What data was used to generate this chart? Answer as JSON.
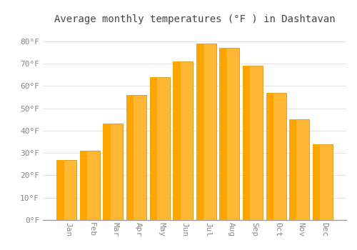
{
  "title": "Average monthly temperatures (°F ) in Dashtavan",
  "months": [
    "Jan",
    "Feb",
    "Mar",
    "Apr",
    "May",
    "Jun",
    "Jul",
    "Aug",
    "Sep",
    "Oct",
    "Nov",
    "Dec"
  ],
  "values": [
    27,
    31,
    43,
    56,
    64,
    71,
    79,
    77,
    69,
    57,
    45,
    34
  ],
  "bar_color": "#FFA500",
  "bar_color_light": "#FFB733",
  "bar_edge_color": "#CC8800",
  "background_color": "#FFFFFF",
  "grid_color": "#DDDDDD",
  "text_color": "#888888",
  "title_color": "#444444",
  "ylim": [
    0,
    85
  ],
  "ytick_values": [
    0,
    10,
    20,
    30,
    40,
    50,
    60,
    70,
    80
  ],
  "title_fontsize": 10,
  "tick_fontsize": 8,
  "figsize": [
    5.0,
    3.5
  ],
  "dpi": 100
}
